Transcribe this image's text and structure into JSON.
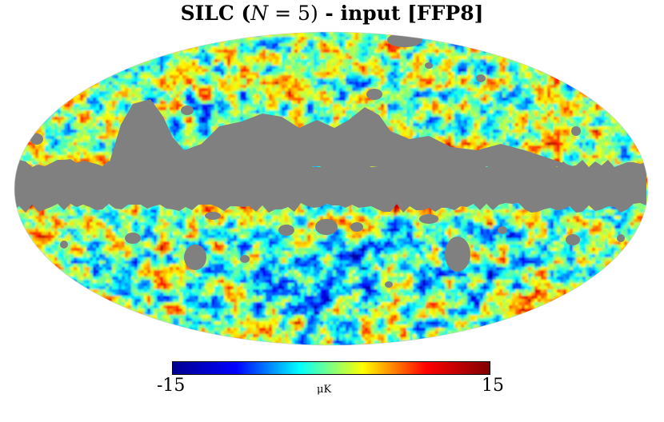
{
  "title": {
    "prefix": "SILC (",
    "math_var": "N",
    "math_rest": " = 5)",
    "suffix": " - input [FFP8]"
  },
  "map": {
    "projection": "Mollweide",
    "mask_color": "#808080",
    "seed": 8
  },
  "colorbar": {
    "min_label": "-15",
    "max_label": "15",
    "unit_label": "μK",
    "min": -15,
    "max": 15,
    "colors": [
      "#00008f",
      "#0000ff",
      "#00ffff",
      "#ffff00",
      "#ff0000",
      "#800000"
    ]
  }
}
